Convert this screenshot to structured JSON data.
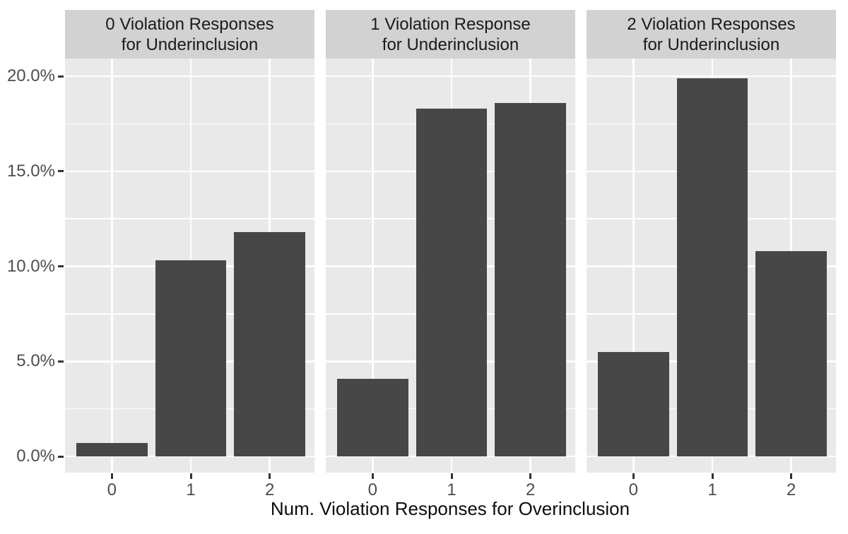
{
  "chart_data": {
    "type": "bar",
    "title": "",
    "xlabel": "Num. Violation Responses for Overinclusion",
    "ylabel": "",
    "categories": [
      "0",
      "1",
      "2"
    ],
    "y_ticks": [
      {
        "label": "0.0%",
        "value": 0
      },
      {
        "label": "5.0%",
        "value": 5
      },
      {
        "label": "10.0%",
        "value": 10
      },
      {
        "label": "15.0%",
        "value": 15
      },
      {
        "label": "20.0%",
        "value": 20
      }
    ],
    "y_minor_ticks": [
      2.5,
      7.5,
      12.5,
      17.5
    ],
    "ylim": [
      -0.85,
      20.93
    ],
    "grid": "white major and minor gridlines on grey panel",
    "legend_position": "none",
    "facets": [
      {
        "strip_line1": "0 Violation Responses",
        "strip_line2": "for Underinclusion",
        "values": [
          0.7,
          10.3,
          11.8
        ]
      },
      {
        "strip_line1": "1 Violation Response",
        "strip_line2": "for Underinclusion",
        "values": [
          4.1,
          18.3,
          18.6
        ]
      },
      {
        "strip_line1": "2 Violation Responses",
        "strip_line2": "for Underinclusion",
        "values": [
          5.5,
          19.9,
          10.8
        ]
      }
    ],
    "colors": {
      "bar_fill": "#474747",
      "panel_background": "#e9e9e9",
      "strip_background": "#d2d2d2",
      "gridline": "#ffffff",
      "tick_mark": "#333333",
      "tick_label_text": "#4d4d4d",
      "axis_title_text": "#0d0d0d"
    }
  }
}
